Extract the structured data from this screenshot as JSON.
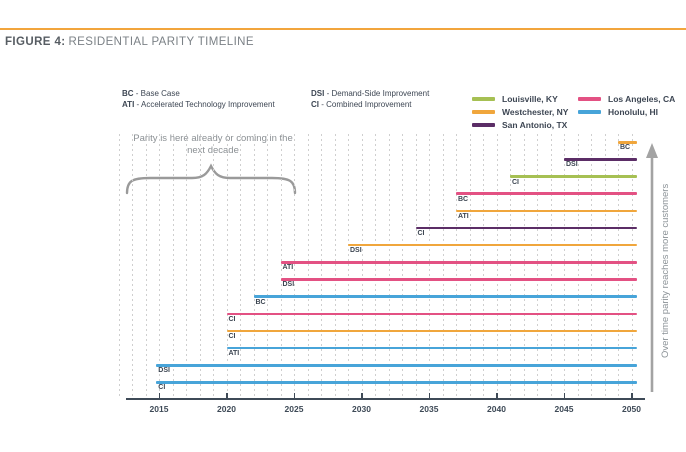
{
  "figure": {
    "label": "FIGURE 4:",
    "title": "RESIDENTIAL PARITY TIMELINE",
    "rule_color": "#f2a53c"
  },
  "scenario_legend": {
    "items": [
      {
        "abbr": "BC",
        "desc": "- Base Case"
      },
      {
        "abbr": "ATI",
        "desc": "- Accelerated Technology Improvement"
      },
      {
        "abbr": "DSI",
        "desc": "- Demand-Side Improvement"
      },
      {
        "abbr": "CI",
        "desc": "- Combined Improvement"
      }
    ]
  },
  "city_legend": {
    "col1": [
      {
        "label": "Louisville, KY",
        "color": "#a6c053"
      },
      {
        "label": "Westchester, NY",
        "color": "#f0a63c"
      },
      {
        "label": "San Antonio, TX",
        "color": "#5b2d66"
      }
    ],
    "col2": [
      {
        "label": "Los Angeles, CA",
        "color": "#e35183"
      },
      {
        "label": "Honolulu, HI",
        "color": "#47a4d9"
      }
    ]
  },
  "chart_data": {
    "type": "timeline",
    "title": "Residential Parity Timeline",
    "grid": "vertical-dashed-yearly",
    "x_range": [
      2012,
      2050
    ],
    "x_axis_ticks": [
      2015,
      2020,
      2025,
      2030,
      2035,
      2040,
      2045,
      2050
    ],
    "series_colors": {
      "Louisville, KY": "#a6c053",
      "Westchester, NY": "#f0a63c",
      "San Antonio, TX": "#5b2d66",
      "Los Angeles, CA": "#e35183",
      "Honolulu, HI": "#47a4d9"
    },
    "bars": [
      {
        "city": "Westchester, NY",
        "scenario": "BC",
        "start_year": 2049,
        "end_year": 2050.4
      },
      {
        "city": "San Antonio, TX",
        "scenario": "DSI",
        "start_year": 2045,
        "end_year": 2050.4
      },
      {
        "city": "Louisville, KY",
        "scenario": "CI",
        "start_year": 2041,
        "end_year": 2050.4
      },
      {
        "city": "Los Angeles, CA",
        "scenario": "BC",
        "start_year": 2037,
        "end_year": 2050.4
      },
      {
        "city": "Westchester, NY",
        "scenario": "ATI",
        "start_year": 2037,
        "end_year": 2050.4
      },
      {
        "city": "San Antonio, TX",
        "scenario": "CI",
        "start_year": 2034,
        "end_year": 2050.4
      },
      {
        "city": "Westchester, NY",
        "scenario": "DSI",
        "start_year": 2029,
        "end_year": 2050.4
      },
      {
        "city": "Los Angeles, CA",
        "scenario": "ATI",
        "start_year": 2024,
        "end_year": 2050.4
      },
      {
        "city": "Los Angeles, CA",
        "scenario": "DSI",
        "start_year": 2024,
        "end_year": 2050.4
      },
      {
        "city": "Honolulu, HI",
        "scenario": "BC",
        "start_year": 2022,
        "end_year": 2050.4
      },
      {
        "city": "Los Angeles, CA",
        "scenario": "CI",
        "start_year": 2020,
        "end_year": 2050.4
      },
      {
        "city": "Westchester, NY",
        "scenario": "CI",
        "start_year": 2020,
        "end_year": 2050.4
      },
      {
        "city": "Honolulu, HI",
        "scenario": "ATI",
        "start_year": 2020,
        "end_year": 2050.4
      },
      {
        "city": "Honolulu, HI",
        "scenario": "DSI",
        "start_year": 2014.8,
        "end_year": 2050.4
      },
      {
        "city": "Honolulu, HI",
        "scenario": "CI",
        "start_year": 2014.8,
        "end_year": 2050.4
      }
    ],
    "annotation": "Parity is here already or coming in the next decade",
    "annotation_span_years": [
      2013,
      2025
    ],
    "right_axis_label": "Over time parity reaches more customers",
    "legend_position": "top-right"
  }
}
